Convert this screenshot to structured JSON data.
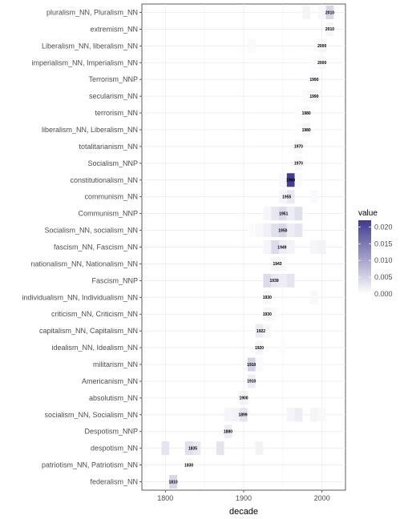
{
  "chart_data": {
    "type": "heatmap",
    "xlabel": "decade",
    "ylabel": "",
    "xlim": [
      1770,
      2030
    ],
    "x_ticks": [
      1800,
      1900,
      2000
    ],
    "grid": true,
    "legend": {
      "title": "value",
      "position": "right",
      "ticks": [
        "0.020",
        "0.015",
        "0.010",
        "0.005",
        "0.000"
      ],
      "tick_values": [
        0.02,
        0.015,
        0.01,
        0.005,
        0.0
      ],
      "range": [
        0,
        0.022
      ],
      "color_low": "#ffffff",
      "color_high": "#3f3a8f"
    },
    "categories": [
      "pluralism_NN, Pluralism_NN",
      "extremism_NN",
      "Liberalism_NN, liberalism_NN",
      "imperialism_NN, Imperialism_NN",
      "Terrorism_NNP",
      "secularism_NN",
      "terrorism_NN",
      "liberalism_NN, Liberalism_NN",
      "totalitarianism_NN",
      "Socialism_NNP",
      "constitutionalism_NN",
      "communism_NN",
      "Communism_NNP",
      "Socialism_NN, socialism_NN",
      "fascism_NN, Fascism_NN",
      "nationalism_NN, Nationalism_NN",
      "Fascism_NNP",
      "individualism_NN, Individualism_NN",
      "criticism_NN, Criticism_NN",
      "capitalism_NN, Capitalism_NN",
      "idealism_NN, Idealism_NN",
      "militarism_NN",
      "Americanism_NN",
      "absolutism_NN",
      "socialism_NN, Socialism_NN",
      "Despotism_NNP",
      "despotism_NN",
      "patriotism_NN, Patriotism_NN",
      "federalism_NN"
    ],
    "peak_labels": [
      "2010",
      "2010",
      "2000",
      "2000",
      "1990",
      "1990",
      "1980",
      "1980",
      "1970",
      "1970",
      "1960",
      "1955",
      "1951",
      "1950",
      "1949",
      "1943",
      "1939",
      "1930",
      "1930",
      "1922",
      "1920",
      "1910",
      "1910",
      "1900",
      "1899",
      "1880",
      "1835",
      "1830",
      "1810"
    ],
    "peak_x": [
      2010,
      2010,
      2000,
      2000,
      1990,
      1990,
      1980,
      1980,
      1970,
      1970,
      1960,
      1955,
      1951,
      1950,
      1949,
      1943,
      1939,
      1930,
      1930,
      1922,
      1920,
      1910,
      1910,
      1900,
      1899,
      1880,
      1835,
      1830,
      1810
    ],
    "cells": [
      [
        [
          2010,
          0.0045
        ],
        [
          1980,
          0.0012
        ],
        [
          2000,
          0.0008
        ]
      ],
      [
        [
          2010,
          0.001
        ]
      ],
      [
        [
          2000,
          0.0008
        ],
        [
          1910,
          0.0006
        ]
      ],
      [
        [
          2000,
          0.0008
        ],
        [
          1990,
          0.0004
        ]
      ],
      [
        [
          1990,
          0.0008
        ]
      ],
      [
        [
          1990,
          0.0012
        ],
        [
          1980,
          0.0006
        ]
      ],
      [
        [
          1980,
          0.0009
        ],
        [
          1970,
          0.0003
        ]
      ],
      [
        [
          1980,
          0.001
        ],
        [
          1970,
          0.0003
        ]
      ],
      [
        [
          1970,
          0.0009
        ]
      ],
      [
        [
          1970,
          0.0008
        ]
      ],
      [
        [
          1960,
          0.0215
        ],
        [
          1950,
          0.0008
        ],
        [
          1970,
          0.0006
        ]
      ],
      [
        [
          1960,
          0.0025
        ],
        [
          1950,
          0.001
        ],
        [
          1990,
          0.0006
        ]
      ],
      [
        [
          1950,
          0.004
        ],
        [
          1940,
          0.0028
        ],
        [
          1930,
          0.001
        ],
        [
          1960,
          0.002
        ],
        [
          1970,
          0.0035
        ]
      ],
      [
        [
          1950,
          0.0045
        ],
        [
          1940,
          0.0035
        ],
        [
          1930,
          0.0018
        ],
        [
          1960,
          0.002
        ],
        [
          1970,
          0.003
        ],
        [
          1920,
          0.0008
        ],
        [
          1910,
          0.0004
        ]
      ],
      [
        [
          1940,
          0.004
        ],
        [
          1950,
          0.002
        ],
        [
          1930,
          0.0012
        ],
        [
          1960,
          0.0015
        ],
        [
          1990,
          0.001
        ],
        [
          2000,
          0.0015
        ]
      ],
      [
        [
          1940,
          0.001
        ],
        [
          1950,
          0.0008
        ]
      ],
      [
        [
          1930,
          0.004
        ],
        [
          1940,
          0.0025
        ],
        [
          1950,
          0.002
        ],
        [
          1960,
          0.003
        ]
      ],
      [
        [
          1930,
          0.001
        ],
        [
          1990,
          0.0008
        ]
      ],
      [
        [
          1930,
          0.0008
        ],
        [
          1940,
          0.0004
        ]
      ],
      [
        [
          1920,
          0.0022
        ],
        [
          1930,
          0.0008
        ]
      ],
      [
        [
          1920,
          0.0012
        ],
        [
          1950,
          0.0004
        ]
      ],
      [
        [
          1910,
          0.005
        ],
        [
          1920,
          0.0006
        ]
      ],
      [
        [
          1910,
          0.002
        ]
      ],
      [
        [
          1900,
          0.0015
        ]
      ],
      [
        [
          1900,
          0.003
        ],
        [
          1890,
          0.0015
        ],
        [
          1880,
          0.001
        ],
        [
          1960,
          0.0012
        ],
        [
          1970,
          0.002
        ],
        [
          1990,
          0.0012
        ],
        [
          2000,
          0.0008
        ]
      ],
      [
        [
          1880,
          0.002
        ]
      ],
      [
        [
          1830,
          0.0035
        ],
        [
          1840,
          0.0025
        ],
        [
          1800,
          0.003
        ],
        [
          1870,
          0.003
        ],
        [
          1920,
          0.0015
        ]
      ],
      [
        [
          1830,
          0.0008
        ]
      ],
      [
        [
          1810,
          0.0045
        ]
      ]
    ]
  }
}
